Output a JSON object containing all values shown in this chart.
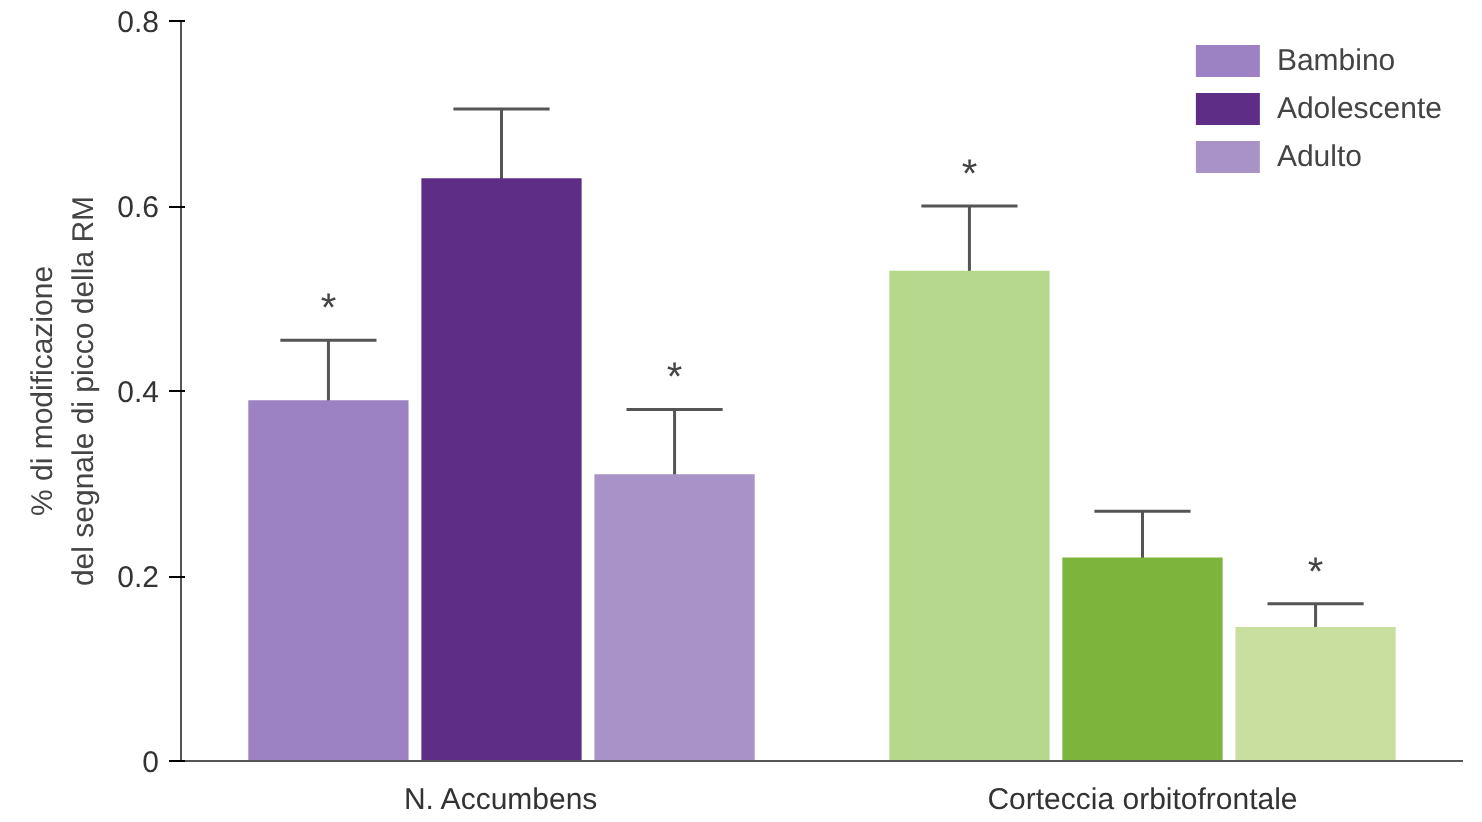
{
  "chart_data": {
    "type": "bar",
    "ylabel": "% di modificazione\ndel segnale di picco della RM",
    "categories": [
      "N. Accumbens",
      "Corteccia orbitofrontale"
    ],
    "series": [
      {
        "name": "Bambino",
        "colors": [
          "#9c82c2",
          "#b5d88c"
        ],
        "values": [
          0.39,
          0.53
        ],
        "errors": [
          0.065,
          0.07
        ],
        "value_labels": [
          "*",
          "*"
        ]
      },
      {
        "name": "Adolescente",
        "colors": [
          "#5e2d86",
          "#7db43c"
        ],
        "values": [
          0.63,
          0.22
        ],
        "errors": [
          0.075,
          0.05
        ]
      },
      {
        "name": "Adulto",
        "colors": [
          "#a892c6",
          "#c9df9f"
        ],
        "values": [
          0.31,
          0.145
        ],
        "errors": [
          0.07,
          0.025
        ],
        "value_labels": [
          "*",
          "*"
        ]
      }
    ],
    "ylim": [
      0,
      0.8
    ],
    "yticks": [
      0,
      0.2,
      0.4,
      0.6,
      0.8
    ],
    "grid": false,
    "legend": "top right"
  }
}
